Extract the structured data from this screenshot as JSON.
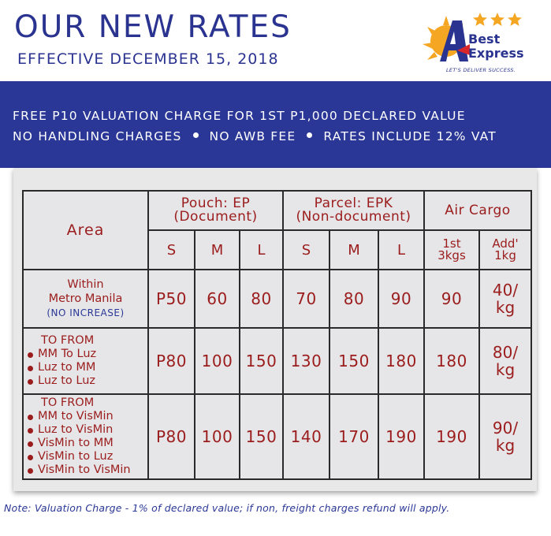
{
  "header": {
    "title": "OUR NEW RATES",
    "subtitle": "EFFECTIVE DECEMBER 15, 2018"
  },
  "logo": {
    "line1": "Best",
    "line2": "Express",
    "tagline": "LET'S DELIVER SUCCESS.",
    "letter": "A",
    "stars": 3
  },
  "banner": {
    "line1": "FREE P10 VALUATION CHARGE FOR 1ST P1,000 DECLARED VALUE",
    "items": [
      "NO HANDLING CHARGES",
      "NO AWB FEE",
      "RATES INCLUDE 12% VAT"
    ]
  },
  "table": {
    "area_header": "Area",
    "pouch_header_1": "Pouch: EP",
    "pouch_header_2": "(Document)",
    "parcel_header_1": "Parcel: EPK",
    "parcel_header_2": "(Non-document)",
    "air_header": "Air Cargo",
    "size_s": "S",
    "size_m": "M",
    "size_l": "L",
    "air_first_1": "1st",
    "air_first_2": "3kgs",
    "air_add_1": "Add'",
    "air_add_2": "1kg",
    "rows": [
      {
        "area_line1": "Within",
        "area_line2": "Metro Manila",
        "area_note": "(NO INCREASE)",
        "ep_s": "P50",
        "ep_m": "60",
        "ep_l": "80",
        "epk_s": "70",
        "epk_m": "80",
        "epk_l": "90",
        "air_first": "90",
        "air_add_1": "40/",
        "air_add_2": "kg"
      },
      {
        "area_title": "TO FROM",
        "area_items": [
          "MM To Luz",
          "Luz to MM",
          "Luz to Luz"
        ],
        "ep_s": "P80",
        "ep_m": "100",
        "ep_l": "150",
        "epk_s": "130",
        "epk_m": "150",
        "epk_l": "180",
        "air_first": "180",
        "air_add_1": "80/",
        "air_add_2": "kg"
      },
      {
        "area_title": "TO FROM",
        "area_items": [
          "MM to VisMin",
          "Luz to VisMin",
          "VisMin to MM",
          "VisMin to Luz",
          "VisMin to VisMin"
        ],
        "ep_s": "P80",
        "ep_m": "100",
        "ep_l": "150",
        "epk_s": "140",
        "epk_m": "170",
        "epk_l": "190",
        "air_first": "190",
        "air_add_1": "90/",
        "air_add_2": "kg"
      }
    ]
  },
  "note": "Note: Valuation Charge - 1% of declared value; if non, freight charges refund will apply.",
  "colors": {
    "brand_blue": "#2a3796",
    "title_blue": "#2a3390",
    "table_red": "#9b1c1c",
    "logo_orange": "#f5a623",
    "logo_red": "#d9262b"
  }
}
